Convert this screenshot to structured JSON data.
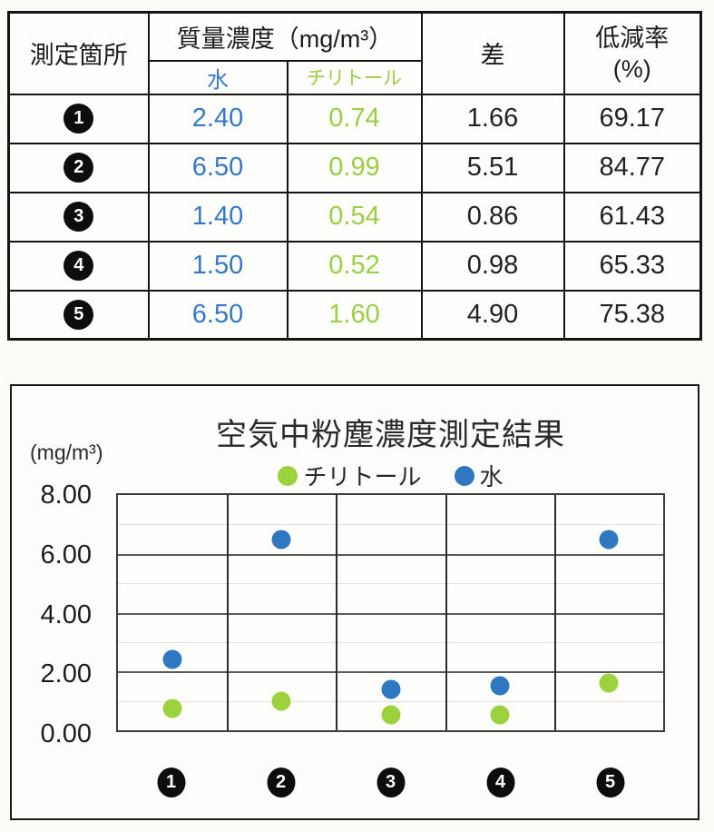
{
  "table": {
    "headers": {
      "location": "測定箇所",
      "mass_concentration": "質量濃度（mg/m³）",
      "water": "水",
      "chiritol": "チリトール",
      "difference": "差",
      "reduction_rate_line1": "低減率",
      "reduction_rate_line2": "(%)"
    },
    "rows": [
      {
        "no": "1",
        "water": "2.40",
        "chiritol": "0.74",
        "diff": "1.66",
        "reduction": "69.17"
      },
      {
        "no": "2",
        "water": "6.50",
        "chiritol": "0.99",
        "diff": "5.51",
        "reduction": "84.77"
      },
      {
        "no": "3",
        "water": "1.40",
        "chiritol": "0.54",
        "diff": "0.86",
        "reduction": "61.43"
      },
      {
        "no": "4",
        "water": "1.50",
        "chiritol": "0.52",
        "diff": "0.98",
        "reduction": "65.33"
      },
      {
        "no": "5",
        "water": "6.50",
        "chiritol": "1.60",
        "diff": "4.90",
        "reduction": "75.38"
      }
    ]
  },
  "chart_data": {
    "type": "scatter",
    "title": "空気中粉塵濃度測定結果",
    "unit_label": "(mg/m³)",
    "categories": [
      "1",
      "2",
      "3",
      "4",
      "5"
    ],
    "series": [
      {
        "name": "チリトール",
        "color": "#9cd23e",
        "values": [
          0.74,
          0.99,
          0.54,
          0.52,
          1.6
        ]
      },
      {
        "name": "水",
        "color": "#2e78c2",
        "values": [
          2.4,
          6.5,
          1.4,
          1.5,
          6.5
        ]
      }
    ],
    "ylim": [
      0,
      8
    ],
    "yticks": [
      "8.00",
      "6.00",
      "4.00",
      "2.00",
      "0.00"
    ],
    "grid": "major 2.00 dark, minor 1.00 light",
    "legend_position": "top-center"
  },
  "colors": {
    "water_text": "#3579c6",
    "chiritol_text": "#9cce44",
    "water_dot": "#2e78c2",
    "chiritol_dot": "#9cd23e"
  }
}
